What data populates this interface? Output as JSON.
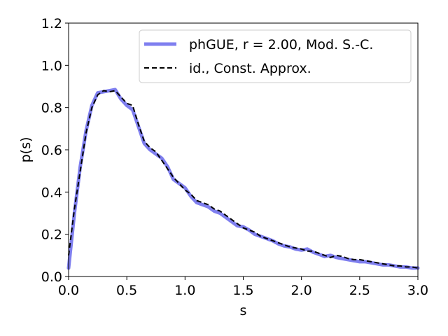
{
  "chart_data": {
    "type": "line",
    "xlabel": "s",
    "ylabel": "p(s)",
    "xlim": [
      0,
      3
    ],
    "ylim": [
      0,
      1.2
    ],
    "xticks": [
      "0.0",
      "0.5",
      "1.0",
      "1.5",
      "2.0",
      "2.5",
      "3.0"
    ],
    "yticks": [
      "0.0",
      "0.2",
      "0.4",
      "0.6",
      "0.8",
      "1.0",
      "1.2"
    ],
    "grid": false,
    "legend_position": "top-right",
    "series": [
      {
        "name": "phGUE, r = 2.00, Mod. S.-C.",
        "color": "#7f7fef",
        "style": "solid-thick",
        "x": [
          0.0,
          0.05,
          0.1,
          0.15,
          0.2,
          0.25,
          0.3,
          0.35,
          0.4,
          0.45,
          0.5,
          0.55,
          0.6,
          0.65,
          0.7,
          0.75,
          0.8,
          0.85,
          0.9,
          0.95,
          1.0,
          1.05,
          1.1,
          1.15,
          1.2,
          1.25,
          1.3,
          1.35,
          1.4,
          1.45,
          1.5,
          1.55,
          1.6,
          1.65,
          1.7,
          1.75,
          1.8,
          1.85,
          1.9,
          1.95,
          2.0,
          2.05,
          2.1,
          2.15,
          2.2,
          2.25,
          2.3,
          2.35,
          2.4,
          2.45,
          2.5,
          2.55,
          2.6,
          2.65,
          2.7,
          2.75,
          2.8,
          2.85,
          2.9,
          2.95,
          3.0
        ],
        "values": [
          0.04,
          0.3,
          0.52,
          0.69,
          0.81,
          0.87,
          0.875,
          0.88,
          0.885,
          0.84,
          0.81,
          0.79,
          0.71,
          0.63,
          0.6,
          0.58,
          0.56,
          0.52,
          0.46,
          0.44,
          0.42,
          0.38,
          0.35,
          0.34,
          0.33,
          0.31,
          0.3,
          0.28,
          0.26,
          0.24,
          0.235,
          0.22,
          0.2,
          0.19,
          0.18,
          0.17,
          0.155,
          0.145,
          0.14,
          0.13,
          0.125,
          0.13,
          0.115,
          0.105,
          0.095,
          0.1,
          0.09,
          0.085,
          0.08,
          0.075,
          0.07,
          0.07,
          0.065,
          0.06,
          0.055,
          0.055,
          0.05,
          0.045,
          0.045,
          0.04,
          0.04
        ]
      },
      {
        "name": "id., Const. Approx.",
        "color": "#000000",
        "style": "dashed",
        "x": [
          0.0,
          0.05,
          0.1,
          0.15,
          0.2,
          0.25,
          0.3,
          0.35,
          0.4,
          0.45,
          0.5,
          0.55,
          0.6,
          0.65,
          0.7,
          0.75,
          0.8,
          0.85,
          0.9,
          0.95,
          1.0,
          1.05,
          1.1,
          1.15,
          1.2,
          1.25,
          1.3,
          1.35,
          1.4,
          1.45,
          1.5,
          1.55,
          1.6,
          1.65,
          1.7,
          1.75,
          1.8,
          1.85,
          1.9,
          1.95,
          2.0,
          2.05,
          2.1,
          2.15,
          2.2,
          2.25,
          2.3,
          2.35,
          2.4,
          2.45,
          2.5,
          2.55,
          2.6,
          2.65,
          2.7,
          2.75,
          2.8,
          2.85,
          2.9,
          2.95,
          3.0
        ],
        "values": [
          0.1,
          0.32,
          0.5,
          0.68,
          0.8,
          0.86,
          0.88,
          0.875,
          0.88,
          0.85,
          0.82,
          0.81,
          0.72,
          0.64,
          0.61,
          0.59,
          0.55,
          0.51,
          0.47,
          0.44,
          0.41,
          0.39,
          0.36,
          0.35,
          0.34,
          0.32,
          0.31,
          0.29,
          0.27,
          0.25,
          0.23,
          0.22,
          0.21,
          0.19,
          0.18,
          0.17,
          0.16,
          0.15,
          0.14,
          0.135,
          0.13,
          0.12,
          0.12,
          0.11,
          0.1,
          0.09,
          0.1,
          0.095,
          0.085,
          0.08,
          0.08,
          0.075,
          0.07,
          0.065,
          0.06,
          0.055,
          0.05,
          0.05,
          0.045,
          0.045,
          0.04
        ]
      }
    ]
  }
}
